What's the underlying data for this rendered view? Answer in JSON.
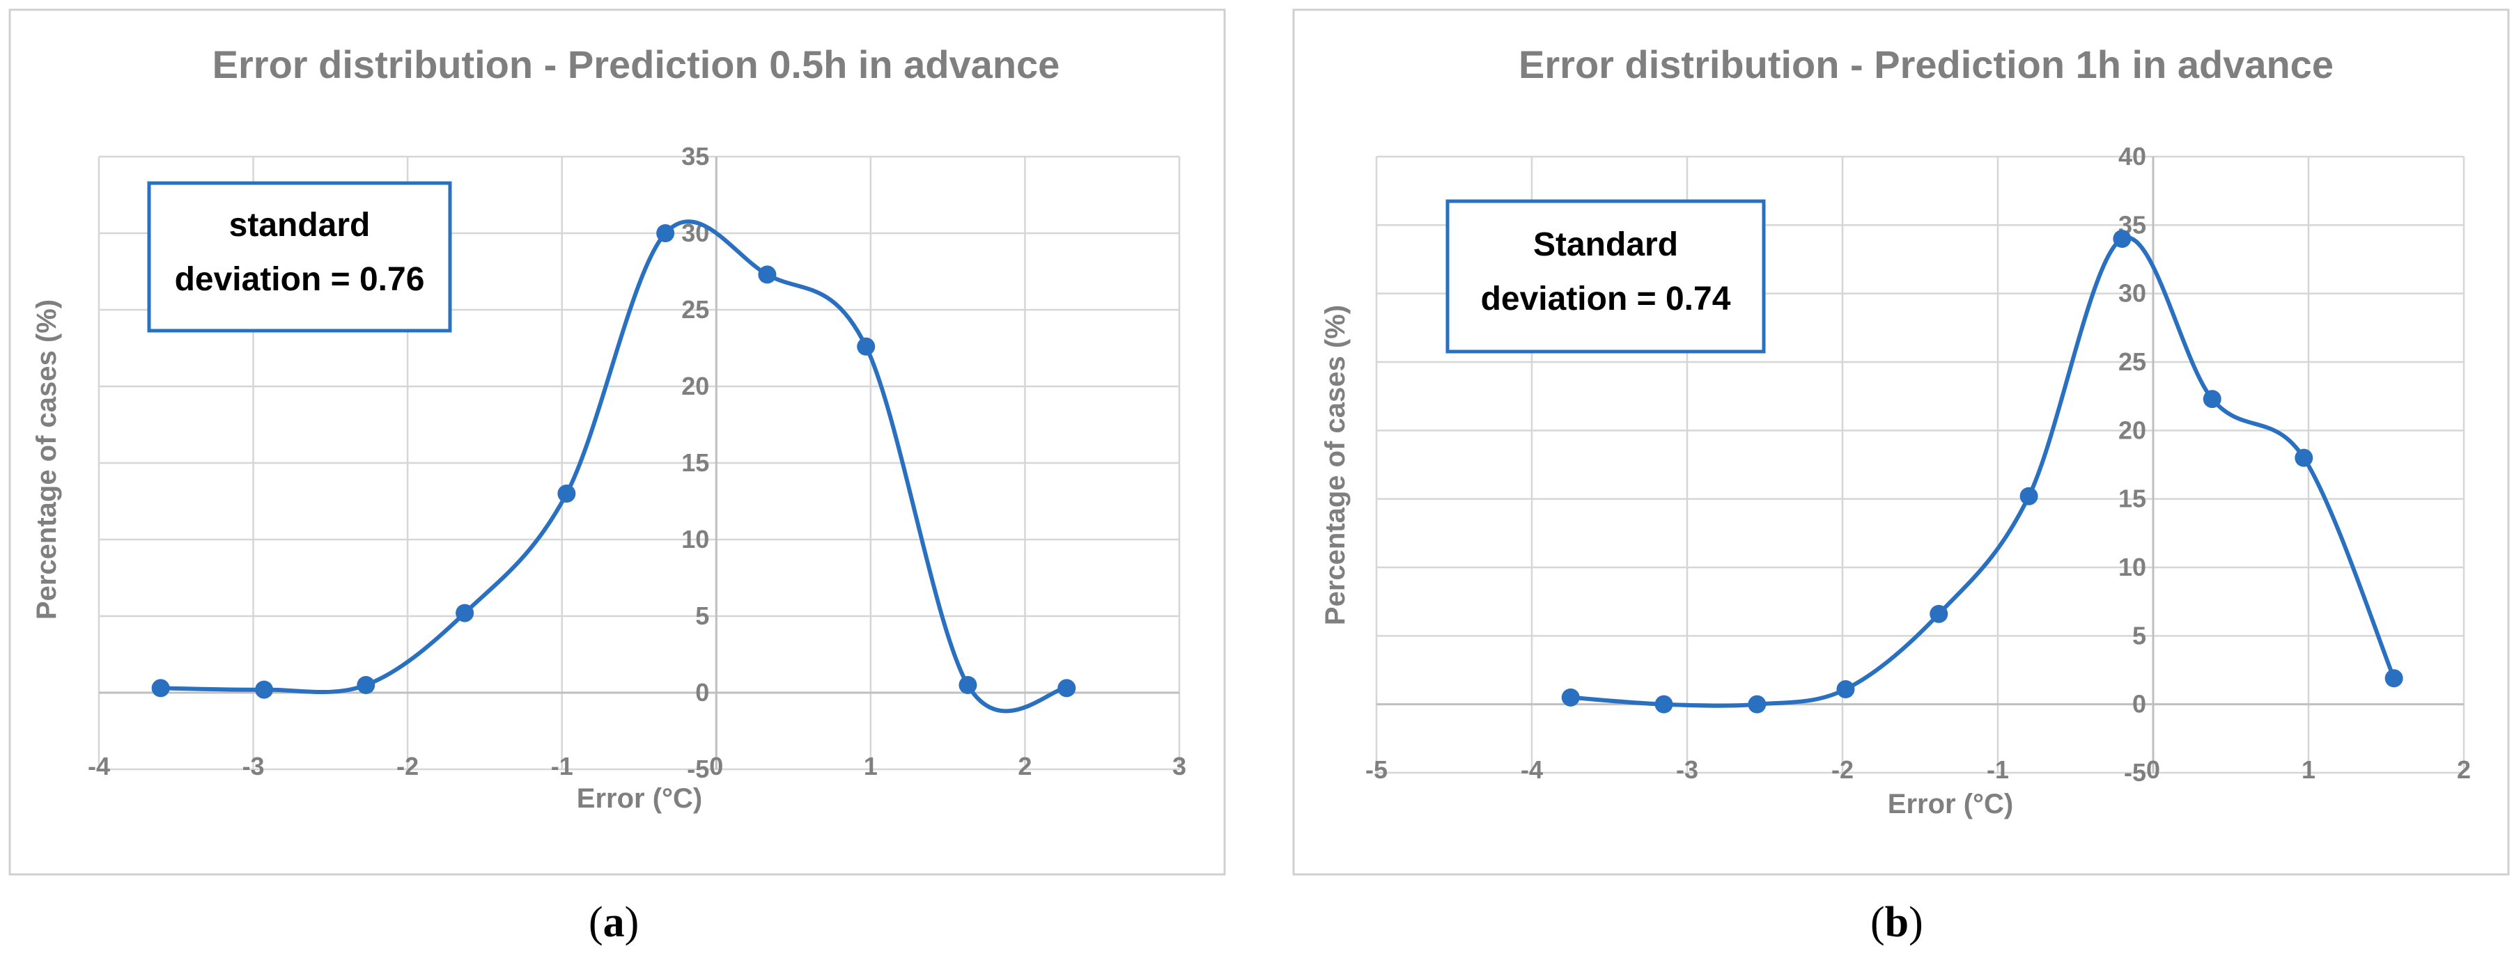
{
  "chart_data": [
    {
      "type": "line",
      "title": "Error distribution - Prediction 0.5h in advance",
      "xlabel": "Error (°C)",
      "ylabel": "Percentage  of cases (%)",
      "xlim": [
        -4,
        3
      ],
      "ylim": [
        -5,
        35
      ],
      "xticks": [
        -4,
        -3,
        -2,
        -1,
        0,
        1,
        2,
        3
      ],
      "yticks": [
        -5,
        0,
        5,
        10,
        15,
        20,
        25,
        30,
        35
      ],
      "xtick_labels": [
        "-4",
        "-3",
        "-2",
        "-1",
        "0",
        "1",
        "2",
        "3"
      ],
      "ytick_labels": [
        "-5",
        "0",
        "5",
        "10",
        "15",
        "20",
        "25",
        "30",
        "35"
      ],
      "grid": true,
      "annotation": [
        "standard",
        "deviation = 0.76"
      ],
      "panel_label": "a",
      "series": [
        {
          "x": [
            -3.6,
            -2.93,
            -2.27,
            -1.63,
            -0.97,
            -0.33,
            0.33,
            0.97,
            1.63,
            2.27
          ],
          "y": [
            0.3,
            0.2,
            0.5,
            5.2,
            13.0,
            30.0,
            27.3,
            22.6,
            0.5,
            0.3
          ]
        }
      ]
    },
    {
      "type": "line",
      "title": "Error distribution - Prediction 1h in advance",
      "xlabel": "Error (°C)",
      "ylabel": "Percentage of cases (%)",
      "xlim": [
        -5,
        2
      ],
      "ylim": [
        -5,
        40
      ],
      "xticks": [
        -5,
        -4,
        -3,
        -2,
        -1,
        0,
        1,
        2
      ],
      "yticks": [
        -5,
        0,
        5,
        10,
        15,
        20,
        25,
        30,
        35,
        40
      ],
      "xtick_labels": [
        "-5",
        "-4",
        "-3",
        "-2",
        "-1",
        "0",
        "1",
        "2"
      ],
      "ytick_labels": [
        "-5",
        "0",
        "5",
        "10",
        "15",
        "20",
        "25",
        "30",
        "35",
        "40"
      ],
      "grid": true,
      "annotation": [
        "Standard",
        "deviation = 0.74"
      ],
      "panel_label": "b",
      "series": [
        {
          "x": [
            -3.75,
            -3.15,
            -2.55,
            -1.98,
            -1.38,
            -0.8,
            -0.2,
            0.38,
            0.97,
            1.55
          ],
          "y": [
            0.5,
            0.0,
            0.0,
            1.1,
            6.6,
            15.2,
            34.0,
            22.3,
            18.0,
            1.9
          ]
        }
      ]
    }
  ]
}
